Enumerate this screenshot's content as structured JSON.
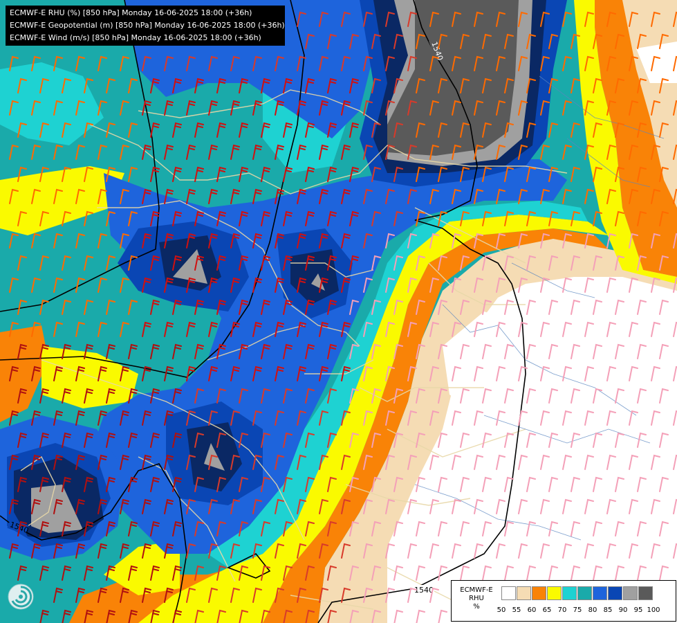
{
  "header": {
    "line1": "ECMWF-E RHU (%) [850 hPa] Monday 16-06-2025 18:00 (+36h)",
    "line2": "ECMWF-E Geopotential (m) [850 hPa] Monday 16-06-2025 18:00 (+36h)",
    "line3": "ECMWF-E Wind (m/s) [850 hPa] Monday 16-06-2025 18:00 (+36h)"
  },
  "contour_labels": [
    "1540",
    "1540",
    "1540"
  ],
  "legend": {
    "title_line1": "ECMWF-E",
    "title_line2": "RHU",
    "title_line3": "%",
    "levels": [
      "50",
      "55",
      "60",
      "65",
      "70",
      "75",
      "80",
      "85",
      "90",
      "95",
      "100"
    ],
    "colors": [
      "#ffffff",
      "#f5dcb4",
      "#f98307",
      "#fafa00",
      "#1ed2d2",
      "#1aaaaa",
      "#1e64dc",
      "#0a46b4",
      "#0a2864",
      "#a0a0a0",
      "#5a5a5a"
    ]
  },
  "logo": {
    "icon": "ecmwf-swirl-logo"
  }
}
